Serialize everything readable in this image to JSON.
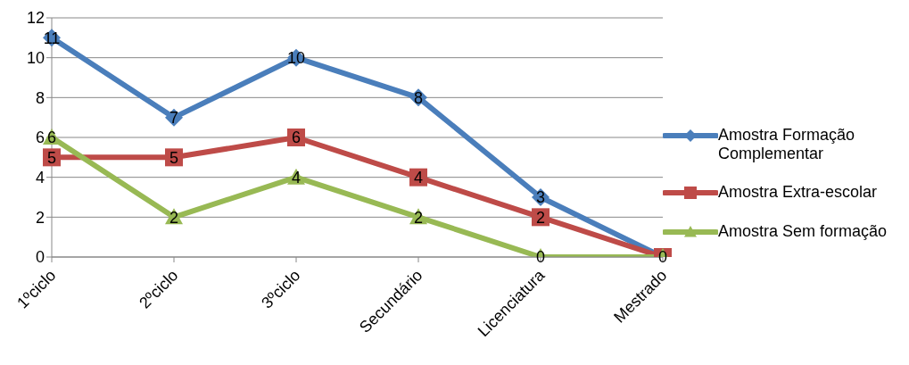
{
  "chart_data": {
    "type": "line",
    "categories": [
      "1ºciclo",
      "2ºciclo",
      "3ºciclo",
      "Secundário",
      "Licenciatura",
      "Mestrado"
    ],
    "series": [
      {
        "name": "Amostra Formação Complementar",
        "color": "#4a7ebb",
        "marker": "diamond",
        "values": [
          11,
          7,
          10,
          8,
          3,
          0
        ],
        "value_labels": [
          "11",
          "7",
          "10",
          "8",
          "3",
          null
        ]
      },
      {
        "name": "Amostra Extra-escolar",
        "color": "#be4b48",
        "marker": "square",
        "values": [
          5,
          5,
          6,
          4,
          2,
          0
        ],
        "value_labels": [
          "5",
          "5",
          "6",
          "4",
          "2",
          null
        ]
      },
      {
        "name": "Amostra Sem formação",
        "color": "#98b954",
        "marker": "triangle",
        "values": [
          6,
          2,
          4,
          2,
          0,
          0
        ],
        "value_labels": [
          "6",
          "2",
          "4",
          "2",
          "0",
          "0"
        ]
      }
    ],
    "ylim": [
      0,
      12
    ],
    "yticks": [
      0,
      2,
      4,
      6,
      8,
      10,
      12
    ],
    "grid": "y",
    "legend": "right",
    "line_style": "solid"
  }
}
